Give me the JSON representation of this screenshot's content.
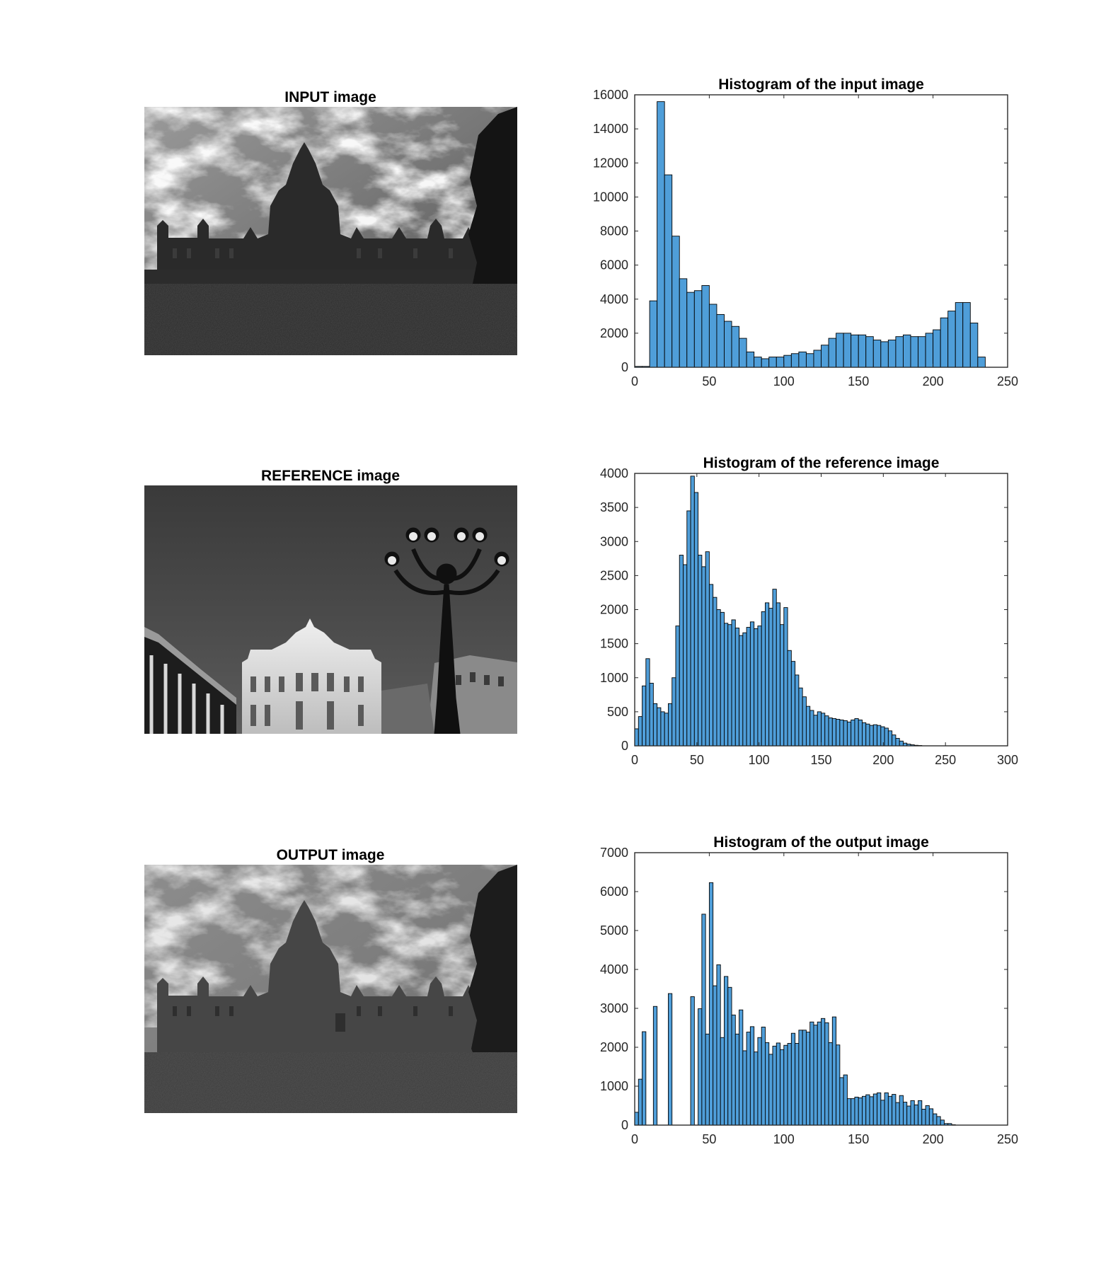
{
  "figure": {
    "panels": [
      {
        "id": "input",
        "title": "INPUT image",
        "kind": "input"
      },
      {
        "id": "reference",
        "title": "REFERENCE image",
        "kind": "reference"
      },
      {
        "id": "output",
        "title": "OUTPUT image",
        "kind": "output"
      }
    ]
  },
  "colors": {
    "bar_fill": "#4f9ed9",
    "bar_edge": "#000000",
    "axis": "#262626"
  },
  "chart_data": [
    {
      "type": "bar",
      "title": "Histogram of the input image",
      "xlabel": "",
      "ylabel": "",
      "xlim": [
        0,
        250
      ],
      "ylim": [
        0,
        16000
      ],
      "xticks": [
        0,
        50,
        100,
        150,
        200,
        250
      ],
      "yticks": [
        0,
        2000,
        4000,
        6000,
        8000,
        10000,
        12000,
        14000,
        16000
      ],
      "bin_width": 5,
      "bin_start": 0,
      "values": [
        50,
        50,
        3900,
        15600,
        11300,
        7700,
        5200,
        4400,
        4500,
        4800,
        3700,
        3100,
        2700,
        2400,
        1700,
        900,
        600,
        500,
        600,
        600,
        700,
        800,
        900,
        800,
        1000,
        1300,
        1700,
        2000,
        2000,
        1900,
        1900,
        1800,
        1600,
        1500,
        1600,
        1800,
        1900,
        1800,
        1800,
        2000,
        2200,
        2900,
        3300,
        3800,
        3800,
        2600,
        600
      ]
    },
    {
      "type": "bar",
      "title": "Histogram of the reference image",
      "xlabel": "",
      "ylabel": "",
      "xlim": [
        0,
        300
      ],
      "ylim": [
        0,
        4000
      ],
      "xticks": [
        0,
        50,
        100,
        150,
        200,
        250,
        300
      ],
      "yticks": [
        0,
        500,
        1000,
        1500,
        2000,
        2500,
        3000,
        3500,
        4000
      ],
      "bin_width": 3,
      "bin_start": 0,
      "values": [
        250,
        430,
        880,
        1280,
        920,
        620,
        560,
        500,
        480,
        620,
        1000,
        1760,
        2800,
        2660,
        3450,
        3960,
        3720,
        2800,
        2630,
        2850,
        2370,
        2180,
        2000,
        1960,
        1800,
        1780,
        1850,
        1730,
        1620,
        1660,
        1740,
        1820,
        1720,
        1760,
        1970,
        2100,
        2020,
        2300,
        2100,
        1780,
        2030,
        1400,
        1240,
        1040,
        850,
        720,
        580,
        520,
        450,
        500,
        480,
        440,
        410,
        400,
        390,
        380,
        370,
        350,
        380,
        400,
        380,
        340,
        320,
        300,
        310,
        300,
        280,
        260,
        220,
        160,
        110,
        70,
        40,
        25,
        15,
        8,
        5,
        0,
        0,
        0,
        0,
        0,
        0,
        0,
        0
      ]
    },
    {
      "type": "bar",
      "title": "Histogram of the output image",
      "xlabel": "",
      "ylabel": "",
      "xlim": [
        0,
        250
      ],
      "ylim": [
        0,
        7000
      ],
      "xticks": [
        0,
        50,
        100,
        150,
        200,
        250
      ],
      "yticks": [
        0,
        1000,
        2000,
        3000,
        4000,
        5000,
        6000,
        7000
      ],
      "bin_width": 2.5,
      "bin_start": 0,
      "values": [
        330,
        1180,
        2400,
        0,
        0,
        3050,
        0,
        0,
        0,
        3380,
        0,
        0,
        0,
        0,
        0,
        3300,
        0,
        2990,
        5420,
        2340,
        6230,
        3580,
        4120,
        2250,
        3820,
        3540,
        2830,
        2340,
        2960,
        1910,
        2390,
        2530,
        1880,
        2250,
        2520,
        2120,
        1820,
        2030,
        2110,
        1940,
        2050,
        2100,
        2360,
        2100,
        2440,
        2440,
        2390,
        2650,
        2570,
        2650,
        2740,
        2630,
        2120,
        2780,
        2060,
        1220,
        1290,
        680,
        680,
        720,
        700,
        740,
        780,
        730,
        800,
        830,
        640,
        830,
        740,
        790,
        580,
        760,
        590,
        490,
        630,
        520,
        630,
        410,
        500,
        420,
        290,
        220,
        130,
        40,
        40,
        10
      ]
    }
  ]
}
